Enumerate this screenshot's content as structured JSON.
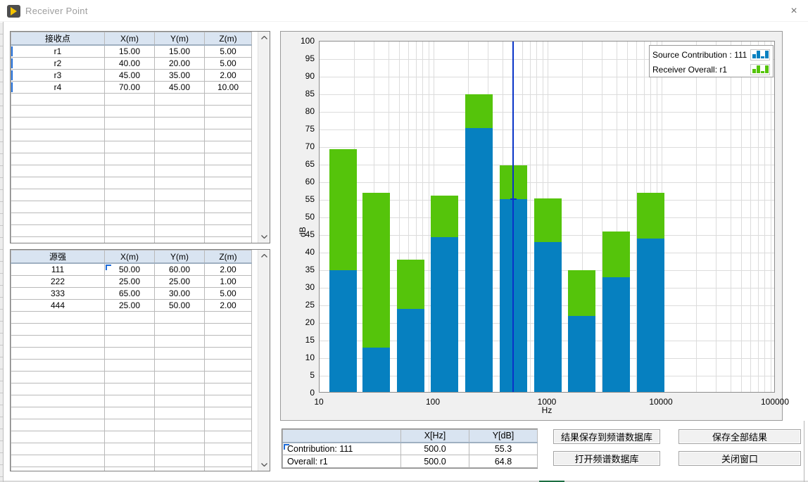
{
  "window": {
    "title": "Receiver Point",
    "close_label": "×"
  },
  "receiver_table": {
    "headers": [
      "接收点",
      "X(m)",
      "Y(m)",
      "Z(m)"
    ],
    "rows": [
      [
        "r1",
        "15.00",
        "15.00",
        "5.00"
      ],
      [
        "r2",
        "40.00",
        "20.00",
        "5.00"
      ],
      [
        "r3",
        "45.00",
        "35.00",
        "2.00"
      ],
      [
        "r4",
        "70.00",
        "45.00",
        "10.00"
      ]
    ],
    "empty_row_count": 13
  },
  "source_table": {
    "headers": [
      "源强",
      "X(m)",
      "Y(m)",
      "Z(m)"
    ],
    "rows": [
      [
        "111",
        "50.00",
        "60.00",
        "2.00"
      ],
      [
        "222",
        "25.00",
        "25.00",
        "1.00"
      ],
      [
        "333",
        "65.00",
        "30.00",
        "5.00"
      ],
      [
        "444",
        "25.00",
        "50.00",
        "2.00"
      ]
    ],
    "empty_row_count": 14
  },
  "chart_data": {
    "type": "bar",
    "x": [
      16,
      31.5,
      63,
      125,
      250,
      500,
      1000,
      2000,
      4000,
      8000
    ],
    "series": [
      {
        "name": "Receiver Overall: r1",
        "color": "#55c40b",
        "values": [
          69.5,
          57,
          38,
          56.3,
          85,
          64.8,
          55.5,
          35,
          46,
          57
        ]
      },
      {
        "name": "Source Contribution : 111",
        "color": "#0680c0",
        "values": [
          35,
          13,
          24,
          44.5,
          75.5,
          55.3,
          43,
          22,
          33,
          44
        ]
      }
    ],
    "title": "",
    "xlabel": "Hz",
    "ylabel": "dB",
    "xscale": "log",
    "xlim": [
      10,
      100000
    ],
    "ylim": [
      0,
      100
    ],
    "ytick_step": 5,
    "x_tick_labels": [
      "10",
      "100",
      "1000",
      "10000",
      "100000"
    ],
    "grid": true,
    "legend_position": "top-right",
    "cursor": {
      "x": 500,
      "y": 55.3,
      "color": "#0a34c8"
    }
  },
  "legend": {
    "items": [
      {
        "label": "Source Contribution : 111",
        "color": "#0680c0"
      },
      {
        "label": "Receiver Overall: r1",
        "color": "#55c40b"
      }
    ]
  },
  "result_table": {
    "headers": [
      "",
      "X[Hz]",
      "Y[dB]"
    ],
    "rows": [
      [
        "Contribution: 111",
        "500.0",
        "55.3"
      ],
      [
        "Overall: r1",
        "500.0",
        "64.8"
      ]
    ]
  },
  "buttons": {
    "save_to_spectrum_db": "结果保存到频谱数据库",
    "save_all_results": "保存全部结果",
    "open_spectrum_db": "打开频谱数据库",
    "close_window": "关闭窗口"
  }
}
